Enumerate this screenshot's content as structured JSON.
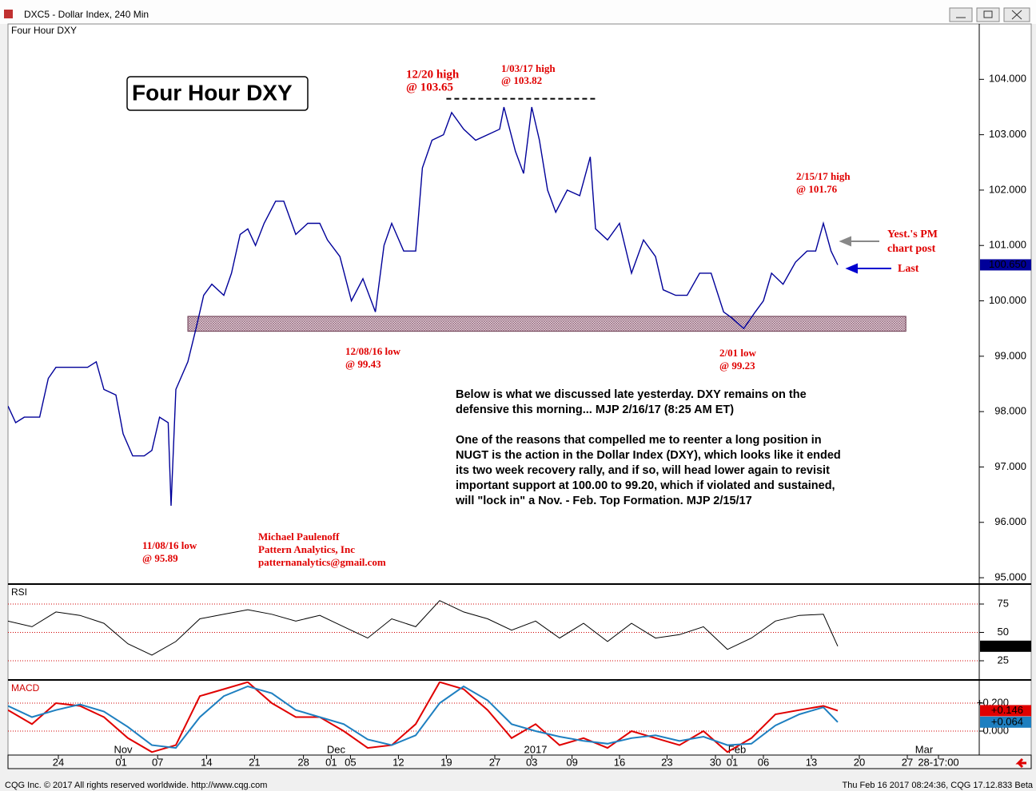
{
  "window": {
    "title": "DXC5 - Dollar Index, 240 Min"
  },
  "footer": {
    "left": "CQG Inc. © 2017 All rights reserved worldwide. http://www.cqg.com",
    "right": "Thu Feb 16 2017 08:24:36, CQG 17.12.833 Beta"
  },
  "chart_data": [
    {
      "type": "line",
      "title": "Four Hour DXY",
      "color": "#000099",
      "x": [
        0,
        0.8,
        1.7,
        3.3,
        4.2,
        5,
        6.7,
        8.3,
        9.2,
        10,
        11.25,
        12,
        13,
        14.2,
        15,
        15.8,
        16.7,
        17,
        17.5,
        18.75,
        19.6,
        20.4,
        21.25,
        22.5,
        23.3,
        24.2,
        25,
        25.8,
        26.7,
        27.9,
        28.75,
        30,
        31.25,
        32.5,
        33.3,
        34.6,
        35.8,
        37,
        38.3,
        39.2,
        40,
        41.25,
        42.5,
        43.2,
        44.2,
        45.4,
        46.25,
        47.5,
        48.75,
        50,
        51.25,
        51.7,
        52.9,
        53.75,
        54.6,
        55.4,
        56.25,
        57.1,
        58.3,
        59.6,
        60.7,
        61.25,
        62.5,
        63.75,
        65,
        66.25,
        67.5,
        68.3,
        69.6,
        70.8,
        72.1,
        73.3,
        74.6,
        75.4,
        76.7,
        77.9,
        78.75,
        79.6,
        80.8,
        82.1,
        83.3,
        84.2,
        85,
        85.8,
        86.5
      ],
      "values": [
        98.1,
        97.8,
        97.9,
        97.9,
        98.6,
        98.8,
        98.8,
        98.8,
        98.9,
        98.4,
        98.3,
        97.6,
        97.2,
        97.2,
        97.3,
        97.9,
        97.8,
        96.3,
        98.4,
        98.9,
        99.5,
        100.1,
        100.3,
        100.1,
        100.5,
        101.2,
        101.3,
        101.0,
        101.4,
        101.8,
        101.8,
        101.2,
        101.4,
        101.4,
        101.1,
        100.8,
        100.0,
        100.4,
        99.8,
        101.0,
        101.4,
        100.9,
        100.9,
        102.4,
        102.9,
        103.0,
        103.4,
        103.1,
        102.9,
        103.0,
        103.1,
        103.5,
        102.7,
        102.3,
        103.5,
        102.9,
        102.0,
        101.6,
        102.0,
        101.9,
        102.6,
        101.3,
        101.1,
        101.4,
        100.5,
        101.1,
        100.8,
        100.2,
        100.1,
        100.1,
        100.5,
        100.5,
        99.8,
        99.7,
        99.5,
        99.8,
        100.0,
        100.5,
        100.3,
        100.7,
        100.9,
        100.9,
        101.4,
        100.9,
        100.65
      ],
      "last": 100.65,
      "last_label": "100.650",
      "xlim": [
        0,
        101.25
      ],
      "ylim": [
        94.9,
        105.0
      ],
      "yticks": [
        {
          "value": 95,
          "label": "95.000"
        },
        {
          "value": 96,
          "label": "96.000"
        },
        {
          "value": 97,
          "label": "97.000"
        },
        {
          "value": 98,
          "label": "98.000"
        },
        {
          "value": 99,
          "label": "99.000"
        },
        {
          "value": 100,
          "label": "100.000"
        },
        {
          "value": 101,
          "label": "101.000"
        },
        {
          "value": 102,
          "label": "102.000"
        },
        {
          "value": 103,
          "label": "103.000"
        },
        {
          "value": 104,
          "label": "104.000"
        }
      ],
      "xticks": [
        {
          "value": 5.25,
          "label": "24"
        },
        {
          "value": 11.8,
          "label": "01"
        },
        {
          "value": 15.6,
          "label": "07"
        },
        {
          "value": 20.7,
          "label": "14"
        },
        {
          "value": 25.7,
          "label": "21"
        },
        {
          "value": 30.8,
          "label": "28"
        },
        {
          "value": 33.7,
          "label": "01"
        },
        {
          "value": 35.7,
          "label": "05"
        },
        {
          "value": 40.7,
          "label": "12"
        },
        {
          "value": 45.7,
          "label": "19"
        },
        {
          "value": 50.75,
          "label": "27"
        },
        {
          "value": 54.6,
          "label": "03"
        },
        {
          "value": 58.8,
          "label": "09"
        },
        {
          "value": 63.75,
          "label": "16"
        },
        {
          "value": 68.7,
          "label": "23"
        },
        {
          "value": 73.75,
          "label": "30"
        },
        {
          "value": 75.5,
          "label": "01"
        },
        {
          "value": 78.75,
          "label": "06"
        },
        {
          "value": 83.75,
          "label": "13"
        },
        {
          "value": 88.75,
          "label": "20"
        },
        {
          "value": 93.75,
          "label": "27"
        },
        {
          "value": 97,
          "label": "28-17:00"
        }
      ],
      "month_labels": [
        {
          "value": 12,
          "label": "Nov"
        },
        {
          "value": 34.2,
          "label": "Dec"
        },
        {
          "value": 55,
          "label": "2017"
        },
        {
          "value": 76,
          "label": "Feb"
        },
        {
          "value": 95.5,
          "label": "Mar"
        }
      ],
      "support_zone": {
        "low": 99.45,
        "high": 99.72,
        "x": [
          18.75,
          93.6
        ]
      },
      "resistance": {
        "value": 103.65,
        "x": [
          45.7,
          61.3
        ]
      },
      "annotations": [
        {
          "lines": [
            "12/20 high",
            "@ 103.65"
          ]
        },
        {
          "lines": [
            "1/03/17 high",
            "@ 103.82"
          ]
        },
        {
          "lines": [
            "2/15/17 high",
            "@ 101.76"
          ]
        },
        {
          "lines": [
            "12/08/16 low",
            "@ 99.43"
          ]
        },
        {
          "lines": [
            "2/01 low",
            "@ 99.23"
          ]
        },
        {
          "lines": [
            "11/08/16 low",
            "@ 95.89"
          ]
        }
      ],
      "pointers": [
        {
          "lines": [
            "Yest.'s PM",
            "chart post"
          ]
        },
        {
          "lines": [
            "Last"
          ]
        }
      ],
      "author": [
        "Michael Paulenoff",
        "Pattern Analytics, Inc",
        "patternanalytics@gmail.com"
      ],
      "commentary": [
        [
          "Below is what we discussed late yesterday. DXY remains on the",
          "defensive this morning... MJP 2/16/17 (8:25 AM ET)"
        ],
        [
          "One of the reasons that compelled me to reenter a long position in",
          "NUGT is the action in the Dollar Index (DXY), which looks like it ended",
          "its two week recovery rally, and if so, will head lower again to revisit",
          "important support at 100.00 to 99.20, which if violated and sustained,",
          "will \"lock in\" a Nov. - Feb. Top Formation.  MJP 2/15/17"
        ]
      ]
    },
    {
      "type": "line",
      "title": "RSI",
      "color": "#000000",
      "x": [
        0,
        2.5,
        5,
        7.5,
        10,
        12.5,
        15,
        17.5,
        20,
        22.5,
        25,
        27.5,
        30,
        32.5,
        35,
        37.5,
        40,
        42.5,
        45,
        47.5,
        50,
        52.5,
        55,
        57.5,
        60,
        62.5,
        65,
        67.5,
        70,
        72.5,
        75,
        77.5,
        80,
        82.5,
        85,
        86.5
      ],
      "values": [
        60,
        55,
        68,
        65,
        58,
        40,
        30,
        42,
        62,
        66,
        70,
        66,
        60,
        65,
        55,
        45,
        62,
        55,
        78,
        68,
        62,
        52,
        60,
        45,
        58,
        42,
        58,
        45,
        48,
        55,
        35,
        45,
        60,
        65,
        66,
        37.81
      ],
      "last": 37.81,
      "xlim": [
        0,
        101.25
      ],
      "ylim": [
        8.8,
        91.2
      ],
      "yticks": [
        25,
        50,
        75
      ]
    },
    {
      "type": "line",
      "title": "MACD",
      "xlim": [
        0,
        101.25
      ],
      "ylim": [
        -0.171,
        0.354
      ],
      "yticks": [
        {
          "value": 0.2,
          "label": "+0.200"
        },
        {
          "value": 0,
          "label": "0.000"
        }
      ],
      "x": [
        0,
        2.5,
        5,
        7.5,
        10,
        12.5,
        15,
        17.5,
        20,
        22.5,
        25,
        27.5,
        30,
        32.5,
        35,
        37.5,
        40,
        42.5,
        45,
        47.5,
        50,
        52.5,
        55,
        57.5,
        60,
        62.5,
        65,
        67.5,
        70,
        72.5,
        75,
        77.5,
        80,
        82.5,
        85,
        86.5
      ],
      "series": [
        {
          "color": "#e00000",
          "values": [
            0.15,
            0.05,
            0.2,
            0.18,
            0.1,
            -0.05,
            -0.15,
            -0.1,
            0.25,
            0.3,
            0.35,
            0.2,
            0.1,
            0.1,
            0,
            -0.12,
            -0.1,
            0.05,
            0.35,
            0.3,
            0.15,
            -0.05,
            0.05,
            -0.1,
            -0.05,
            -0.12,
            0,
            -0.05,
            -0.1,
            0,
            -0.15,
            -0.05,
            0.12,
            0.15,
            0.18,
            0.146
          ],
          "last_label": "+0.146"
        },
        {
          "color": "#1e7fc0",
          "values": [
            0.18,
            0.1,
            0.15,
            0.19,
            0.14,
            0.03,
            -0.1,
            -0.12,
            0.1,
            0.25,
            0.32,
            0.27,
            0.15,
            0.1,
            0.05,
            -0.06,
            -0.1,
            -0.03,
            0.2,
            0.32,
            0.22,
            0.05,
            0,
            -0.04,
            -0.07,
            -0.09,
            -0.05,
            -0.03,
            -0.07,
            -0.04,
            -0.1,
            -0.09,
            0.04,
            0.12,
            0.17,
            0.064
          ],
          "last_label": "+0.064"
        }
      ]
    }
  ]
}
